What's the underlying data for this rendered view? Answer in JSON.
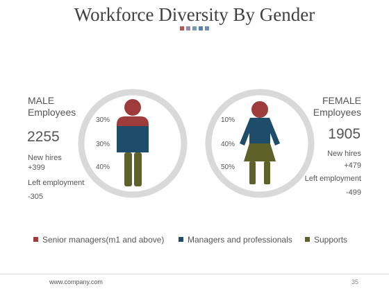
{
  "slide": {
    "title": "Workforce Diversity By Gender",
    "title_squares": [
      "#b85450",
      "#9a8aa8",
      "#6f9fb0",
      "#5a7fa8",
      "#6e8cb8"
    ],
    "footer_url": "www.company.com",
    "page_number": "35"
  },
  "colors": {
    "senior": "#9e3b3b",
    "managers": "#1e4d6b",
    "supports": "#5e6128",
    "ring": "#d9d9d9"
  },
  "male": {
    "heading_line1": "MALE",
    "heading_line2": "Employees",
    "count": "2255",
    "new_hires_label": "New hires",
    "new_hires_value": "+399",
    "left_label": "Left employment",
    "left_value": "-305",
    "pct_senior": "30%",
    "pct_managers": "30%",
    "pct_supports": "40%"
  },
  "female": {
    "heading_line1": "FEMALE",
    "heading_line2": "Employees",
    "count": "1905",
    "new_hires_label": "New hires",
    "new_hires_value": "+479",
    "left_label": "Left employment",
    "left_value": "-499",
    "pct_senior": "10%",
    "pct_managers": "40%",
    "pct_supports": "50%"
  },
  "legend": [
    {
      "label": "Senior managers(m1 and above)",
      "color": "#9e3b3b"
    },
    {
      "label": "Managers and professionals",
      "color": "#1e4d6b"
    },
    {
      "label": "Supports",
      "color": "#5e6128"
    }
  ]
}
